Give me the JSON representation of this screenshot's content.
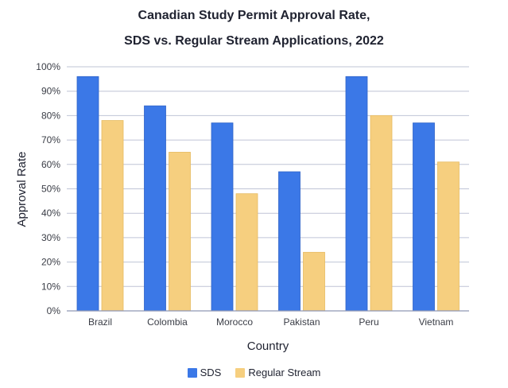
{
  "colors": {
    "sds": "#3b78e7",
    "sds_stroke": "#2f63c8",
    "regular": "#f6cf7f",
    "regular_stroke": "#e7bb62",
    "grid": "#bfc4d6",
    "axis": "#8f97b3"
  },
  "chart_data": {
    "type": "bar",
    "title": [
      "Canadian Study Permit Approval Rate,",
      "SDS vs. Regular Stream Applications, 2022"
    ],
    "xlabel": "Country",
    "ylabel": "Approval Rate",
    "categories": [
      "Brazil",
      "Colombia",
      "Morocco",
      "Pakistan",
      "Peru",
      "Vietnam"
    ],
    "series": [
      {
        "name": "SDS",
        "values": [
          96,
          84,
          77,
          57,
          96,
          77
        ]
      },
      {
        "name": "Regular Stream",
        "values": [
          78,
          65,
          48,
          24,
          80,
          61
        ]
      }
    ],
    "ylim": [
      0,
      100
    ],
    "yticks": [
      0,
      10,
      20,
      30,
      40,
      50,
      60,
      70,
      80,
      90,
      100
    ],
    "ytick_labels": [
      "0%",
      "10%",
      "20%",
      "30%",
      "40%",
      "50%",
      "60%",
      "70%",
      "80%",
      "90%",
      "100%"
    ],
    "grid": true,
    "legend_position": "bottom"
  }
}
